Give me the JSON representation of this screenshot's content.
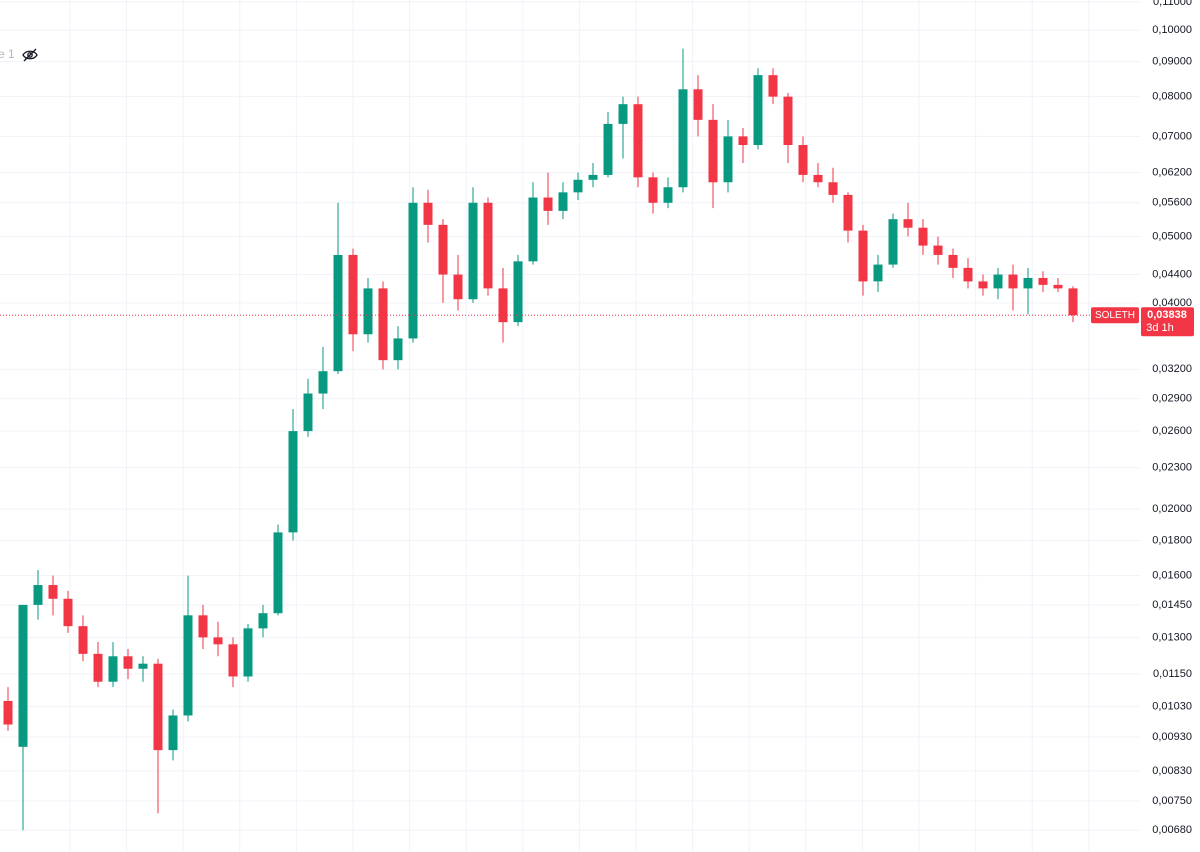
{
  "chart_data": {
    "type": "candlestick",
    "symbol": "SOLETH",
    "countdown": "3d 1h",
    "legend_fragment": "e 1",
    "log_scale": true,
    "grid": true,
    "up_color": "#089981",
    "down_color": "#f23645",
    "last_price": {
      "value": 0.03838,
      "label": "0,03838"
    },
    "ylim": [
      0.00632,
      0.1107
    ],
    "yticks": [
      {
        "value": 0.11,
        "label": "0,11000"
      },
      {
        "value": 0.1,
        "label": "0,10000"
      },
      {
        "value": 0.09,
        "label": "0,09000"
      },
      {
        "value": 0.08,
        "label": "0,08000"
      },
      {
        "value": 0.07,
        "label": "0,07000"
      },
      {
        "value": 0.062,
        "label": "0,06200"
      },
      {
        "value": 0.056,
        "label": "0,05600"
      },
      {
        "value": 0.05,
        "label": "0,05000"
      },
      {
        "value": 0.044,
        "label": "0,04400"
      },
      {
        "value": 0.04,
        "label": "0,04000"
      },
      {
        "value": 0.032,
        "label": "0,03200"
      },
      {
        "value": 0.029,
        "label": "0,02900"
      },
      {
        "value": 0.026,
        "label": "0,02600"
      },
      {
        "value": 0.023,
        "label": "0,02300"
      },
      {
        "value": 0.02,
        "label": "0,02000"
      },
      {
        "value": 0.018,
        "label": "0,01800"
      },
      {
        "value": 0.016,
        "label": "0,01600"
      },
      {
        "value": 0.0145,
        "label": "0,01450"
      },
      {
        "value": 0.013,
        "label": "0,01300"
      },
      {
        "value": 0.0115,
        "label": "0,01150"
      },
      {
        "value": 0.0103,
        "label": "0,01030"
      },
      {
        "value": 0.0093,
        "label": "0,00930"
      },
      {
        "value": 0.0083,
        "label": "0,00830"
      },
      {
        "value": 0.0075,
        "label": "0,00750"
      },
      {
        "value": 0.0068,
        "label": "0,00680"
      }
    ],
    "open": [
      0.0105,
      0.009,
      0.0145,
      0.0155,
      0.0148,
      0.0135,
      0.0123,
      0.0112,
      0.0122,
      0.0117,
      0.0119,
      0.0089,
      0.01,
      0.014,
      0.013,
      0.0127,
      0.0114,
      0.0134,
      0.0141,
      0.0185,
      0.026,
      0.0295,
      0.0318,
      0.047,
      0.036,
      0.042,
      0.033,
      0.0355,
      0.056,
      0.052,
      0.044,
      0.0405,
      0.056,
      0.042,
      0.0375,
      0.046,
      0.057,
      0.0545,
      0.058,
      0.0605,
      0.0615,
      0.073,
      0.078,
      0.061,
      0.056,
      0.059,
      0.082,
      0.074,
      0.06,
      0.07,
      0.068,
      0.086,
      0.08,
      0.068,
      0.0615,
      0.06,
      0.0575,
      0.051,
      0.043,
      0.0455,
      0.053,
      0.0515,
      0.0485,
      0.047,
      0.045,
      0.043,
      0.042,
      0.044,
      0.042,
      0.0435,
      0.0425,
      0.042
    ],
    "high": [
      0.011,
      0.0145,
      0.0163,
      0.016,
      0.0152,
      0.014,
      0.0128,
      0.0128,
      0.0125,
      0.0122,
      0.0121,
      0.0102,
      0.016,
      0.0145,
      0.0137,
      0.013,
      0.0136,
      0.0145,
      0.019,
      0.028,
      0.031,
      0.0345,
      0.056,
      0.048,
      0.0435,
      0.043,
      0.037,
      0.059,
      0.0585,
      0.053,
      0.047,
      0.059,
      0.057,
      0.045,
      0.047,
      0.06,
      0.062,
      0.06,
      0.062,
      0.064,
      0.076,
      0.08,
      0.08,
      0.062,
      0.061,
      0.094,
      0.086,
      0.078,
      0.074,
      0.072,
      0.088,
      0.088,
      0.081,
      0.07,
      0.064,
      0.063,
      0.058,
      0.052,
      0.047,
      0.054,
      0.056,
      0.053,
      0.05,
      0.048,
      0.0465,
      0.044,
      0.045,
      0.0455,
      0.045,
      0.0445,
      0.0435,
      0.0423
    ],
    "low": [
      0.0095,
      0.0068,
      0.0138,
      0.014,
      0.0132,
      0.012,
      0.011,
      0.011,
      0.0113,
      0.0112,
      0.0072,
      0.0086,
      0.0098,
      0.0125,
      0.0122,
      0.011,
      0.0112,
      0.013,
      0.014,
      0.018,
      0.0255,
      0.028,
      0.0315,
      0.034,
      0.035,
      0.032,
      0.032,
      0.035,
      0.049,
      0.04,
      0.039,
      0.04,
      0.041,
      0.035,
      0.037,
      0.0455,
      0.052,
      0.053,
      0.0565,
      0.059,
      0.061,
      0.065,
      0.059,
      0.054,
      0.055,
      0.058,
      0.07,
      0.055,
      0.058,
      0.064,
      0.067,
      0.078,
      0.064,
      0.06,
      0.059,
      0.056,
      0.049,
      0.041,
      0.0415,
      0.045,
      0.05,
      0.047,
      0.0455,
      0.0435,
      0.042,
      0.041,
      0.0405,
      0.039,
      0.0385,
      0.0415,
      0.0415,
      0.0375
    ],
    "close": [
      0.0097,
      0.0145,
      0.0155,
      0.0148,
      0.0135,
      0.0123,
      0.0112,
      0.0122,
      0.0117,
      0.0119,
      0.0089,
      0.01,
      0.014,
      0.013,
      0.0127,
      0.0114,
      0.0134,
      0.0141,
      0.0185,
      0.026,
      0.0295,
      0.0318,
      0.047,
      0.036,
      0.042,
      0.033,
      0.0355,
      0.056,
      0.052,
      0.044,
      0.0405,
      0.056,
      0.042,
      0.0375,
      0.046,
      0.057,
      0.0545,
      0.058,
      0.0605,
      0.0615,
      0.073,
      0.078,
      0.061,
      0.056,
      0.059,
      0.082,
      0.074,
      0.06,
      0.07,
      0.068,
      0.086,
      0.08,
      0.068,
      0.0615,
      0.06,
      0.0575,
      0.051,
      0.043,
      0.0455,
      0.053,
      0.0515,
      0.0485,
      0.047,
      0.045,
      0.043,
      0.042,
      0.044,
      0.042,
      0.0435,
      0.0425,
      0.042,
      0.03838
    ]
  }
}
